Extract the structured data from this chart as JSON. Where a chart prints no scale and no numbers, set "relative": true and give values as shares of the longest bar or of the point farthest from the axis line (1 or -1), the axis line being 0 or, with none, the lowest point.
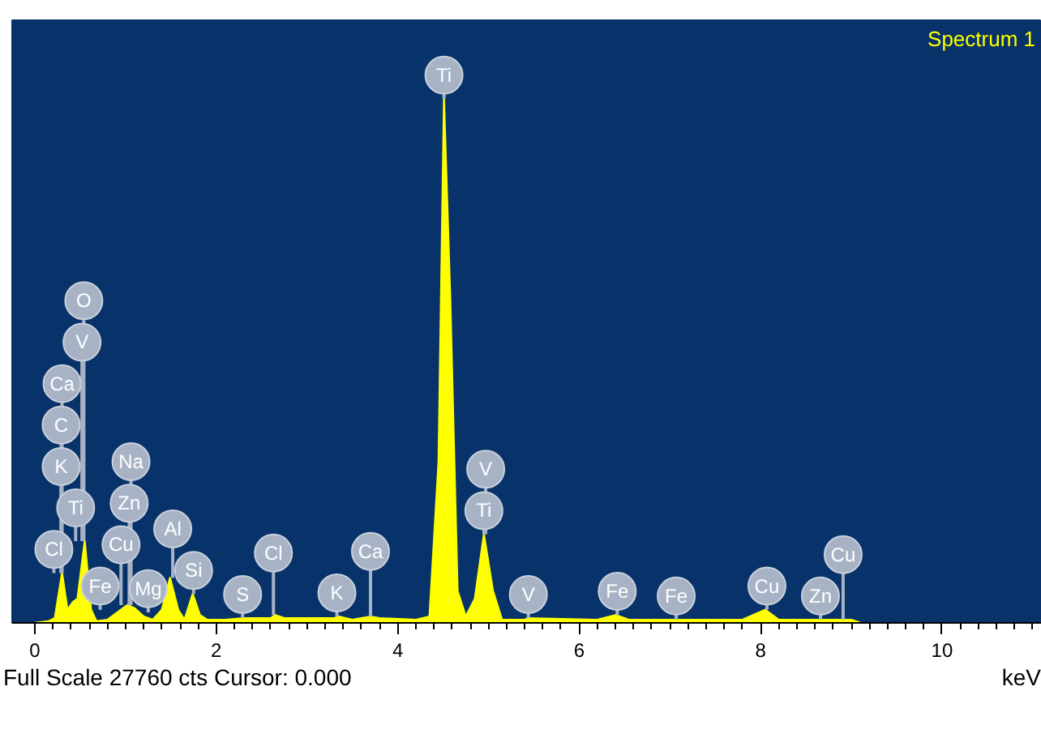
{
  "chart_data": {
    "type": "area",
    "relative": true,
    "xlabel": "keV",
    "legend": "top right",
    "x": [
      0.0,
      0.15,
      0.22,
      0.3,
      0.36,
      0.42,
      0.47,
      0.55,
      0.62,
      0.68,
      0.8,
      0.95,
      1.02,
      1.1,
      1.2,
      1.3,
      1.4,
      1.49,
      1.58,
      1.65,
      1.74,
      1.82,
      1.9,
      2.1,
      2.3,
      2.6,
      2.65,
      2.75,
      3.3,
      3.35,
      3.5,
      3.7,
      3.8,
      4.2,
      4.35,
      4.45,
      4.51,
      4.58,
      4.66,
      4.75,
      4.85,
      4.95,
      5.05,
      5.15,
      5.4,
      5.43,
      6.2,
      6.4,
      6.55,
      7.0,
      7.8,
      8.05,
      8.2,
      8.6,
      9.0,
      9.1
    ],
    "series": [
      {
        "name": "Spectrum 1",
        "color": "#ffff00",
        "values": [
          0,
          0.003,
          0.009,
          0.095,
          0.025,
          0.04,
          0.046,
          0.156,
          0.025,
          0.003,
          0.006,
          0.025,
          0.034,
          0.028,
          0.012,
          0.006,
          0.025,
          0.086,
          0.025,
          0.006,
          0.055,
          0.015,
          0.006,
          0.006,
          0.009,
          0.009,
          0.015,
          0.009,
          0.009,
          0.012,
          0.006,
          0.012,
          0.009,
          0.006,
          0.012,
          0.307,
          1,
          0.613,
          0.061,
          0.012,
          0.046,
          0.169,
          0.061,
          0.006,
          0.006,
          0.009,
          0.006,
          0.015,
          0.006,
          0.006,
          0.006,
          0.025,
          0.006,
          0.006,
          0.006,
          0
        ]
      }
    ],
    "xlim": [
      -0.25,
      11.1
    ],
    "xticks": [
      0,
      {
        "value": 0.2,
        "label": null
      },
      {
        "value": 0.4,
        "label": null
      },
      {
        "value": 0.6,
        "label": null
      },
      {
        "value": 0.8,
        "label": null
      },
      {
        "value": 1,
        "label": null
      },
      {
        "value": 1.2,
        "label": null
      },
      {
        "value": 1.4,
        "label": null
      },
      {
        "value": 1.6,
        "label": null
      },
      {
        "value": 1.8,
        "label": null
      },
      2,
      {
        "value": 2.2,
        "label": null
      },
      {
        "value": 2.4,
        "label": null
      },
      {
        "value": 2.6,
        "label": null
      },
      {
        "value": 2.8,
        "label": null
      },
      {
        "value": 3,
        "label": null
      },
      {
        "value": 3.2,
        "label": null
      },
      {
        "value": 3.4,
        "label": null
      },
      {
        "value": 3.6,
        "label": null
      },
      {
        "value": 3.8,
        "label": null
      },
      4,
      {
        "value": 4.2,
        "label": null
      },
      {
        "value": 4.4,
        "label": null
      },
      {
        "value": 4.6,
        "label": null
      },
      {
        "value": 4.8,
        "label": null
      },
      {
        "value": 5,
        "label": null
      },
      {
        "value": 5.2,
        "label": null
      },
      {
        "value": 5.4,
        "label": null
      },
      {
        "value": 5.6,
        "label": null
      },
      {
        "value": 5.8,
        "label": null
      },
      6,
      {
        "value": 6.2,
        "label": null
      },
      {
        "value": 6.4,
        "label": null
      },
      {
        "value": 6.6,
        "label": null
      },
      {
        "value": 6.8,
        "label": null
      },
      {
        "value": 7,
        "label": null
      },
      {
        "value": 7.2,
        "label": null
      },
      {
        "value": 7.4,
        "label": null
      },
      {
        "value": 7.6,
        "label": null
      },
      {
        "value": 7.8,
        "label": null
      },
      8,
      {
        "value": 8.2,
        "label": null
      },
      {
        "value": 8.4,
        "label": null
      },
      {
        "value": 8.6,
        "label": null
      },
      {
        "value": 8.8,
        "label": null
      },
      {
        "value": 9,
        "label": null
      },
      {
        "value": 9.2,
        "label": null
      },
      {
        "value": 9.4,
        "label": null
      },
      {
        "value": 9.6,
        "label": null
      },
      {
        "value": 9.8,
        "label": null
      },
      10,
      {
        "value": 10.2,
        "label": null
      },
      {
        "value": 10.4,
        "label": null
      },
      {
        "value": 10.6,
        "label": null
      },
      {
        "value": 10.8,
        "label": null
      },
      {
        "value": 11,
        "label": null
      }
    ],
    "grid": false,
    "annotations": [
      "Full Scale 27760 cts Cursor: 0.000",
      {
        "text": "Cl",
        "x": 0.21
      },
      {
        "text": "Fe",
        "x": 0.72
      },
      {
        "text": "Ti",
        "x": 0.45
      },
      {
        "text": "K",
        "x": 0.29
      },
      {
        "text": "C",
        "x": 0.29
      },
      {
        "text": "Ca",
        "x": 0.3
      },
      {
        "text": "V",
        "x": 0.52
      },
      {
        "text": "O",
        "x": 0.54
      },
      {
        "text": "Cu",
        "x": 0.95
      },
      {
        "text": "Zn",
        "x": 1.04
      },
      {
        "text": "Na",
        "x": 1.06
      },
      {
        "text": "Mg",
        "x": 1.25
      },
      {
        "text": "Si",
        "x": 1.75
      },
      {
        "text": "Al",
        "x": 1.52
      },
      {
        "text": "S",
        "x": 2.29
      },
      {
        "text": "Cl",
        "x": 2.63
      },
      {
        "text": "K",
        "x": 3.33
      },
      {
        "text": "Ca",
        "x": 3.7
      },
      {
        "text": "Ti",
        "x": 4.51,
        "y": 1
      },
      {
        "text": "Ti",
        "x": 4.95
      },
      {
        "text": "V",
        "x": 4.97
      },
      {
        "text": "V",
        "x": 5.44
      },
      {
        "text": "Fe",
        "x": 6.42
      },
      {
        "text": "Fe",
        "x": 7.07
      },
      {
        "text": "Cu",
        "x": 8.07
      },
      {
        "text": "Zn",
        "x": 8.66
      },
      {
        "text": "Cu",
        "x": 8.91
      }
    ]
  }
}
